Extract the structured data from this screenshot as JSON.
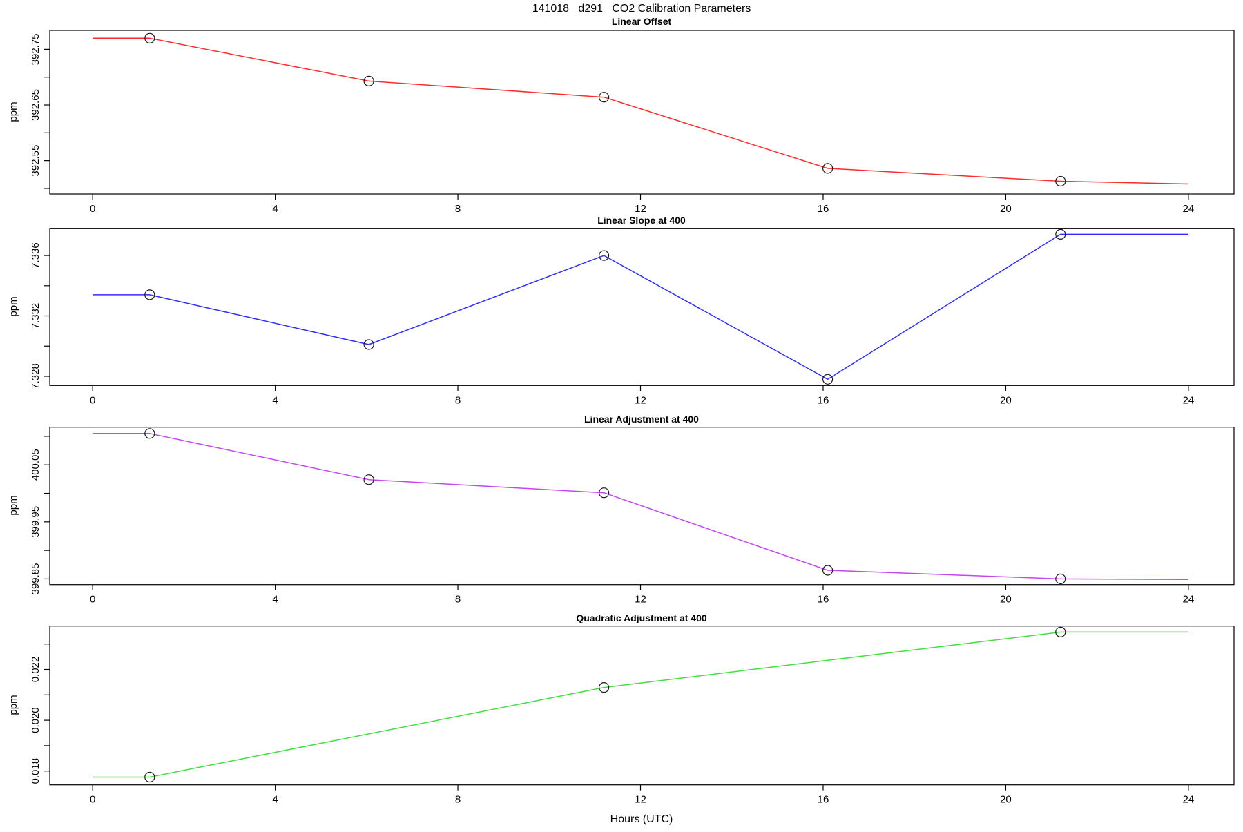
{
  "title": "141018   d291   CO2 Calibration Parameters",
  "xlabel": "Hours (UTC)",
  "chart_data": [
    {
      "type": "line",
      "title": "Linear Offset",
      "ylabel": "ppm",
      "color": "#ff2b2b",
      "marker": "open-circle",
      "x": [
        1.25,
        6.05,
        11.2,
        16.1,
        21.2
      ],
      "y": [
        392.77,
        392.693,
        392.664,
        392.536,
        392.513
      ],
      "line_extension": {
        "x0": 0,
        "y0": 392.77,
        "x1": 24,
        "y1": 392.508
      },
      "ylim": [
        392.49,
        392.784
      ],
      "yticks": [
        392.5,
        392.55,
        392.6,
        392.65,
        392.7,
        392.75
      ],
      "ytick_labels": [
        "",
        "392.55",
        "",
        "392.65",
        "",
        "392.75"
      ]
    },
    {
      "type": "line",
      "title": "Linear Slope at 400",
      "ylabel": "ppm",
      "color": "#2e2eff",
      "marker": "open-circle",
      "x": [
        1.25,
        6.05,
        11.2,
        16.1,
        21.2
      ],
      "y": [
        7.3334,
        7.3301,
        7.336,
        7.3278,
        7.3374
      ],
      "line_extension": {
        "x0": 0,
        "y0": 7.3334,
        "x1": 24,
        "y1": 7.3374
      },
      "ylim": [
        7.32739,
        7.3378
      ],
      "yticks": [
        7.328,
        7.33,
        7.332,
        7.334,
        7.336
      ],
      "ytick_labels": [
        "7.328",
        "",
        "7.332",
        "",
        "7.336"
      ]
    },
    {
      "type": "line",
      "title": "Linear Adjustment at 400",
      "ylabel": "ppm",
      "color": "#c445f2",
      "marker": "open-circle",
      "x": [
        1.25,
        6.05,
        11.2,
        16.1,
        21.2
      ],
      "y": [
        400.105,
        400.024,
        400.001,
        399.865,
        399.85
      ],
      "line_extension": {
        "x0": 0,
        "y0": 400.105,
        "x1": 24,
        "y1": 399.849
      },
      "ylim": [
        399.84,
        400.116
      ],
      "yticks": [
        399.85,
        399.9,
        399.95,
        400.0,
        400.05,
        400.1
      ],
      "ytick_labels": [
        "399.85",
        "",
        "399.95",
        "",
        "400.05",
        ""
      ]
    },
    {
      "type": "line",
      "title": "Quadratic Adjustment at 400",
      "ylabel": "ppm",
      "color": "#3fdf3f",
      "marker": "open-circle",
      "x": [
        1.25,
        11.2,
        21.2
      ],
      "y": [
        0.01776,
        0.02129,
        0.02347
      ],
      "line_extension": {
        "x0": 0,
        "y0": 0.01776,
        "x1": 24,
        "y1": 0.02347
      },
      "ylim": [
        0.017457,
        0.023707
      ],
      "yticks": [
        0.018,
        0.019,
        0.02,
        0.021,
        0.022,
        0.023
      ],
      "ytick_labels": [
        "0.018",
        "",
        "0.020",
        "",
        "0.022",
        ""
      ]
    }
  ],
  "x_ticks": [
    0,
    4,
    8,
    12,
    16,
    20,
    24
  ],
  "x_tick_labels": [
    "0",
    "4",
    "8",
    "12",
    "16",
    "20",
    "24"
  ],
  "xlim": [
    -0.94,
    25.0
  ]
}
